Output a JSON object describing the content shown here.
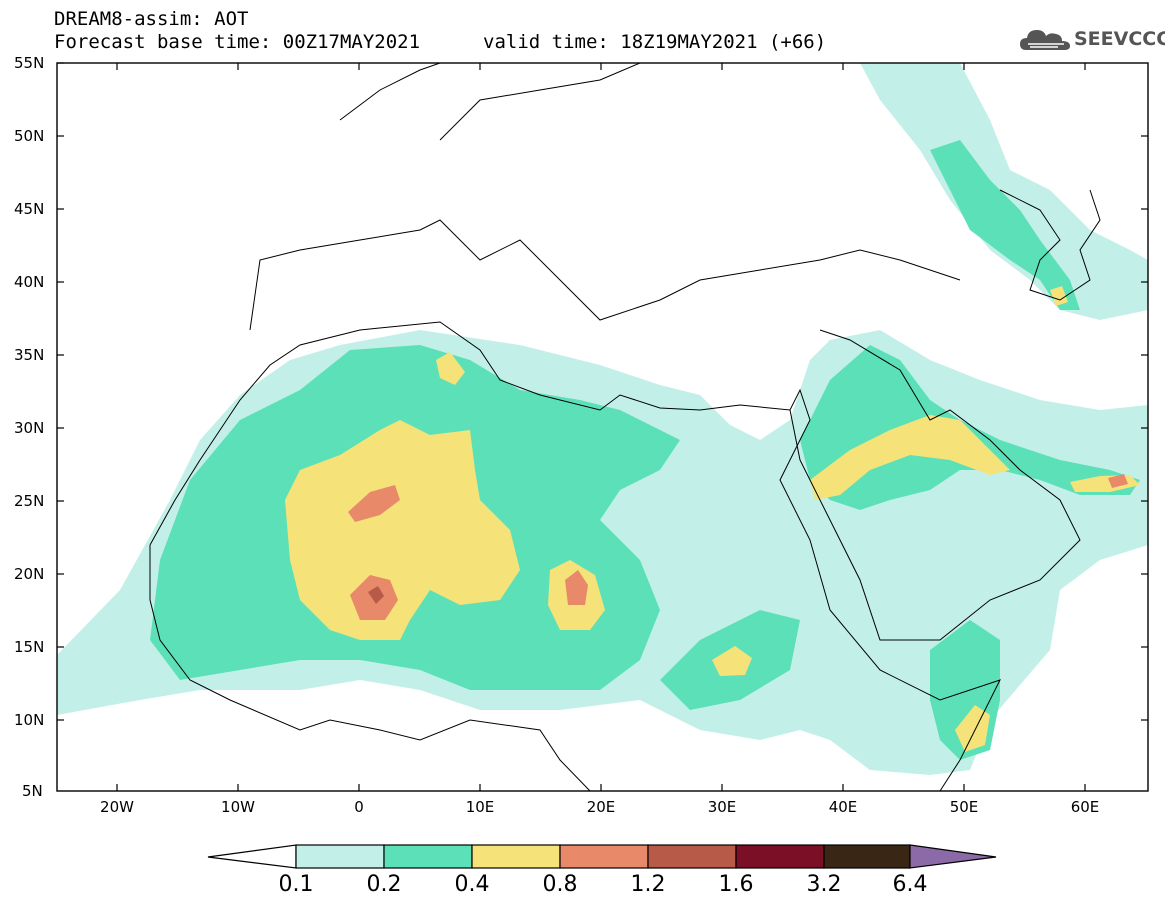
{
  "title": {
    "model": "DREAM8-assim: AOT",
    "base_time": "Forecast base time: 00Z17MAY2021",
    "valid_time": "valid time: 18Z19MAY2021 (+66)"
  },
  "logo": {
    "text": "SEEVCCC",
    "icon": "cloud-logo-icon"
  },
  "axes": {
    "lat_labels": [
      "55N",
      "50N",
      "45N",
      "40N",
      "35N",
      "30N",
      "25N",
      "20N",
      "15N",
      "10N",
      "5N"
    ],
    "lon_labels": [
      "20W",
      "10W",
      "0",
      "10E",
      "20E",
      "30E",
      "40E",
      "50E",
      "60E"
    ]
  },
  "colorbar": {
    "levels": [
      "0.1",
      "0.2",
      "0.4",
      "0.8",
      "1.2",
      "1.6",
      "3.2",
      "6.4"
    ],
    "colors": [
      "#ffffff",
      "#c2f0e8",
      "#5ce0b8",
      "#f5e37a",
      "#e8896a",
      "#b85a48",
      "#7a0f25",
      "#3a2614",
      "#8c6aa8"
    ]
  },
  "colors": {
    "c01": "#c2f0e8",
    "c02": "#5ce0b8",
    "c04": "#f5e37a",
    "c08": "#e8896a",
    "c12": "#b85a48"
  }
}
